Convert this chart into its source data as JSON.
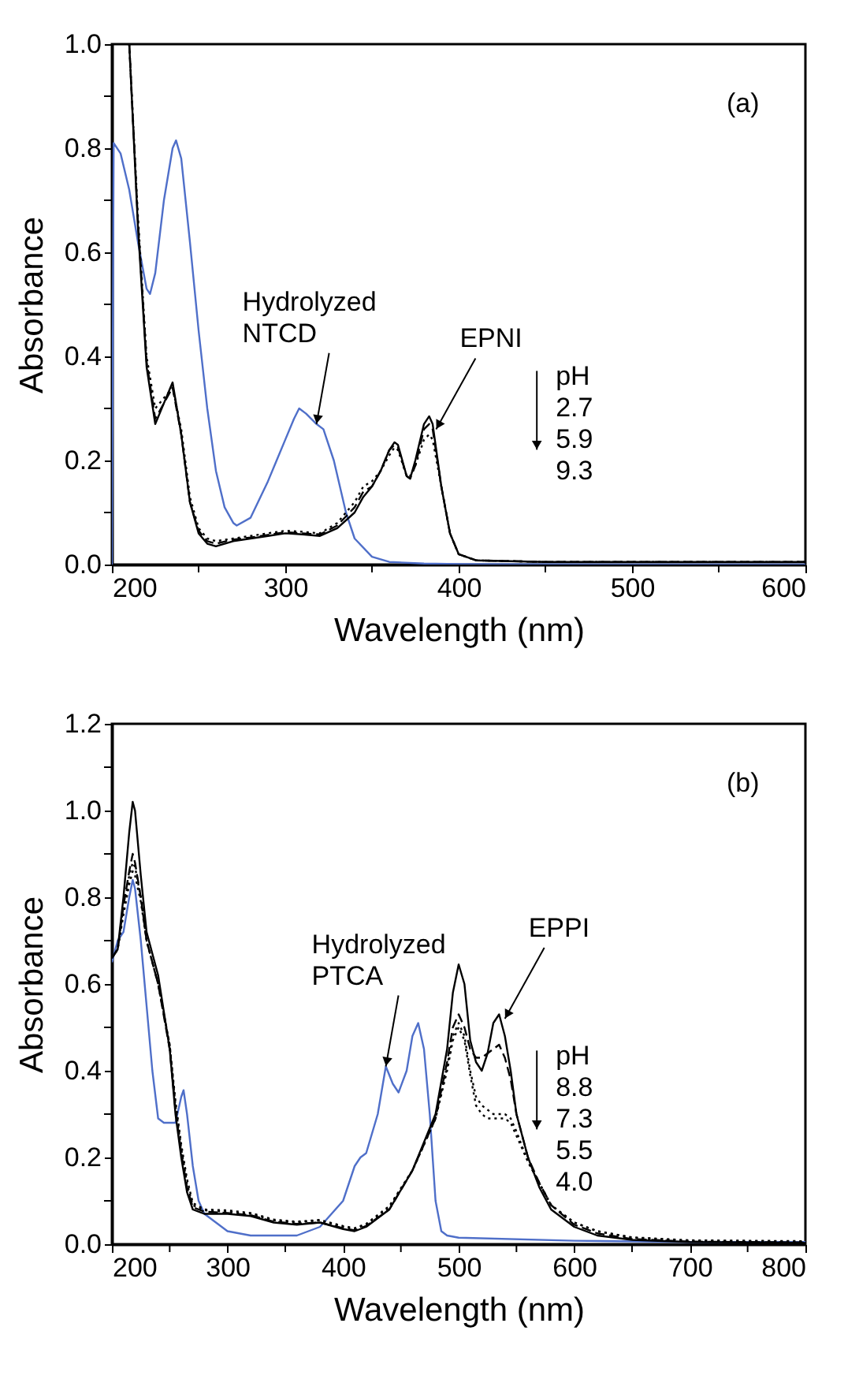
{
  "chart_data": [
    {
      "type": "line",
      "xlabel": "Wavelength (nm)",
      "ylabel": "Absorbance",
      "xlim": [
        200,
        600
      ],
      "ylim": [
        0,
        1.0
      ],
      "xticks": [
        200,
        {
          "value": 250,
          "label": null
        },
        300,
        {
          "value": 350,
          "label": null
        },
        400,
        {
          "value": 450,
          "label": null
        },
        500,
        {
          "value": 550,
          "label": null
        },
        600
      ],
      "yticks": [
        {
          "value": 0,
          "label": "0.0"
        },
        {
          "value": 0.1,
          "label": null
        },
        {
          "value": 0.2,
          "label": "0.2"
        },
        {
          "value": 0.3,
          "label": null
        },
        {
          "value": 0.4,
          "label": "0.4"
        },
        {
          "value": 0.5,
          "label": null
        },
        {
          "value": 0.6,
          "label": "0.6"
        },
        {
          "value": 0.7,
          "label": null
        },
        {
          "value": 0.8,
          "label": "0.8"
        },
        {
          "value": 0.9,
          "label": null
        },
        {
          "value": 1.0,
          "label": "1.0"
        }
      ],
      "grid": false,
      "annotations": [
        "(a)",
        "pH 2.7 5.9 9.3",
        {
          "text": "Hydrolyzed NTCD",
          "x": 318,
          "y": 0.27
        },
        {
          "text": "EPNI",
          "x": 387,
          "y": 0.26
        }
      ],
      "series": [
        {
          "color": "#4f6fc9",
          "line_style": "solid",
          "x": [
            200,
            201,
            205,
            210,
            215,
            220,
            222,
            225,
            230,
            235,
            237,
            240,
            245,
            250,
            255,
            260,
            265,
            270,
            272,
            280,
            290,
            295,
            300,
            305,
            308,
            312,
            318,
            322,
            328,
            335,
            340,
            350,
            360,
            380,
            400,
            500,
            600
          ],
          "values": [
            0.0,
            0.81,
            0.79,
            0.72,
            0.62,
            0.53,
            0.52,
            0.56,
            0.7,
            0.8,
            0.815,
            0.78,
            0.62,
            0.45,
            0.3,
            0.18,
            0.11,
            0.08,
            0.075,
            0.09,
            0.16,
            0.2,
            0.24,
            0.28,
            0.3,
            0.29,
            0.27,
            0.26,
            0.2,
            0.1,
            0.05,
            0.015,
            0.005,
            0.002,
            0.001,
            0.0,
            0.0
          ]
        },
        {
          "color": "#000000",
          "line_style": "solid",
          "x": [
            210,
            215,
            220,
            225,
            230,
            235,
            240,
            245,
            250,
            255,
            260,
            270,
            280,
            290,
            300,
            310,
            320,
            330,
            340,
            345,
            350,
            355,
            360,
            363,
            365,
            370,
            372,
            375,
            380,
            383,
            385,
            390,
            395,
            400,
            410,
            450,
            500,
            550,
            600
          ],
          "values": [
            1.0,
            0.65,
            0.38,
            0.27,
            0.31,
            0.35,
            0.25,
            0.12,
            0.06,
            0.04,
            0.035,
            0.045,
            0.05,
            0.055,
            0.06,
            0.058,
            0.055,
            0.07,
            0.1,
            0.13,
            0.15,
            0.18,
            0.22,
            0.235,
            0.23,
            0.17,
            0.165,
            0.2,
            0.27,
            0.285,
            0.27,
            0.15,
            0.06,
            0.02,
            0.008,
            0.005,
            0.005,
            0.005,
            0.005
          ]
        },
        {
          "color": "#000000",
          "line_style": "dashed",
          "x": [
            210,
            215,
            220,
            225,
            230,
            235,
            240,
            245,
            250,
            255,
            260,
            270,
            280,
            290,
            300,
            310,
            320,
            330,
            340,
            345,
            350,
            355,
            360,
            363,
            365,
            370,
            372,
            375,
            380,
            383,
            385,
            390,
            395,
            400,
            410,
            450,
            500,
            550,
            600
          ],
          "values": [
            1.0,
            0.66,
            0.39,
            0.28,
            0.31,
            0.34,
            0.25,
            0.12,
            0.065,
            0.045,
            0.04,
            0.048,
            0.052,
            0.057,
            0.062,
            0.06,
            0.058,
            0.075,
            0.11,
            0.14,
            0.15,
            0.18,
            0.22,
            0.23,
            0.225,
            0.17,
            0.165,
            0.19,
            0.26,
            0.27,
            0.26,
            0.15,
            0.06,
            0.02,
            0.008,
            0.005,
            0.005,
            0.005,
            0.005
          ]
        },
        {
          "color": "#000000",
          "line_style": "dotted",
          "x": [
            210,
            215,
            220,
            225,
            230,
            235,
            240,
            245,
            250,
            255,
            260,
            270,
            280,
            290,
            300,
            310,
            320,
            330,
            340,
            345,
            350,
            355,
            360,
            363,
            365,
            370,
            372,
            375,
            380,
            383,
            385,
            390,
            395,
            400,
            410,
            450,
            500,
            550,
            600
          ],
          "values": [
            1.0,
            0.67,
            0.4,
            0.3,
            0.32,
            0.34,
            0.26,
            0.13,
            0.07,
            0.05,
            0.045,
            0.05,
            0.055,
            0.06,
            0.065,
            0.063,
            0.06,
            0.08,
            0.12,
            0.15,
            0.16,
            0.18,
            0.21,
            0.225,
            0.22,
            0.17,
            0.17,
            0.19,
            0.24,
            0.25,
            0.24,
            0.15,
            0.06,
            0.02,
            0.008,
            0.005,
            0.005,
            0.005,
            0.005
          ]
        }
      ]
    },
    {
      "type": "line",
      "xlabel": "Wavelength (nm)",
      "ylabel": "Absorbance",
      "xlim": [
        200,
        800
      ],
      "ylim": [
        0,
        1.2
      ],
      "xticks": [
        200,
        {
          "value": 250,
          "label": null
        },
        300,
        {
          "value": 350,
          "label": null
        },
        400,
        {
          "value": 450,
          "label": null
        },
        500,
        {
          "value": 550,
          "label": null
        },
        600,
        {
          "value": 650,
          "label": null
        },
        700,
        {
          "value": 750,
          "label": null
        },
        800
      ],
      "yticks": [
        {
          "value": 0,
          "label": "0.0"
        },
        {
          "value": 0.1,
          "label": null
        },
        {
          "value": 0.2,
          "label": "0.2"
        },
        {
          "value": 0.3,
          "label": null
        },
        {
          "value": 0.4,
          "label": "0.4"
        },
        {
          "value": 0.5,
          "label": null
        },
        {
          "value": 0.6,
          "label": "0.6"
        },
        {
          "value": 0.7,
          "label": null
        },
        {
          "value": 0.8,
          "label": "0.8"
        },
        {
          "value": 0.9,
          "label": null
        },
        {
          "value": 1.0,
          "label": "1.0"
        },
        {
          "value": 1.1,
          "label": null
        },
        {
          "value": 1.2,
          "label": "1.2"
        }
      ],
      "grid": false,
      "annotations": [
        "(b)",
        "pH 8.8 7.3 5.5 4.0",
        {
          "text": "Hydrolyzed PTCA",
          "x": 437,
          "y": 0.41
        },
        {
          "text": "EPPI",
          "x": 540,
          "y": 0.52
        }
      ],
      "series": [
        {
          "color": "#4f6fc9",
          "line_style": "solid",
          "x": [
            200,
            205,
            210,
            215,
            218,
            220,
            225,
            230,
            235,
            240,
            245,
            250,
            255,
            260,
            262,
            265,
            270,
            275,
            280,
            290,
            300,
            320,
            360,
            380,
            400,
            410,
            415,
            420,
            430,
            437,
            443,
            448,
            455,
            460,
            465,
            470,
            475,
            480,
            485,
            490,
            500,
            600,
            700,
            800
          ],
          "values": [
            0.65,
            0.7,
            0.72,
            0.8,
            0.84,
            0.82,
            0.7,
            0.55,
            0.4,
            0.29,
            0.28,
            0.28,
            0.28,
            0.34,
            0.355,
            0.3,
            0.18,
            0.1,
            0.07,
            0.05,
            0.03,
            0.02,
            0.02,
            0.04,
            0.1,
            0.18,
            0.2,
            0.21,
            0.3,
            0.41,
            0.37,
            0.35,
            0.4,
            0.48,
            0.51,
            0.45,
            0.3,
            0.1,
            0.03,
            0.02,
            0.015,
            0.008,
            0.005,
            0.005
          ]
        },
        {
          "color": "#000000",
          "line_style": "solid",
          "x": [
            200,
            205,
            210,
            215,
            218,
            220,
            225,
            230,
            240,
            250,
            255,
            260,
            265,
            270,
            280,
            300,
            320,
            340,
            360,
            380,
            400,
            410,
            420,
            440,
            460,
            480,
            490,
            495,
            500,
            505,
            510,
            515,
            520,
            525,
            530,
            535,
            540,
            545,
            550,
            560,
            570,
            580,
            600,
            620,
            650,
            700,
            800
          ],
          "values": [
            0.66,
            0.68,
            0.8,
            0.95,
            1.02,
            1.0,
            0.85,
            0.72,
            0.62,
            0.45,
            0.3,
            0.2,
            0.12,
            0.08,
            0.07,
            0.07,
            0.065,
            0.05,
            0.045,
            0.05,
            0.035,
            0.03,
            0.04,
            0.08,
            0.17,
            0.3,
            0.45,
            0.58,
            0.645,
            0.6,
            0.47,
            0.42,
            0.4,
            0.44,
            0.51,
            0.53,
            0.48,
            0.4,
            0.3,
            0.2,
            0.13,
            0.08,
            0.04,
            0.02,
            0.01,
            0.005,
            0.003
          ]
        },
        {
          "color": "#000000",
          "line_style": "dashed",
          "x": [
            200,
            205,
            210,
            215,
            218,
            220,
            225,
            230,
            240,
            250,
            255,
            260,
            265,
            270,
            280,
            300,
            320,
            340,
            360,
            380,
            400,
            410,
            420,
            440,
            460,
            480,
            490,
            495,
            500,
            505,
            510,
            515,
            520,
            525,
            530,
            535,
            540,
            545,
            550,
            560,
            570,
            580,
            600,
            620,
            650,
            700,
            800
          ],
          "values": [
            0.66,
            0.68,
            0.78,
            0.86,
            0.9,
            0.88,
            0.8,
            0.7,
            0.6,
            0.45,
            0.31,
            0.21,
            0.13,
            0.085,
            0.075,
            0.072,
            0.067,
            0.052,
            0.047,
            0.05,
            0.037,
            0.032,
            0.042,
            0.08,
            0.17,
            0.29,
            0.42,
            0.5,
            0.53,
            0.5,
            0.45,
            0.43,
            0.43,
            0.44,
            0.45,
            0.46,
            0.43,
            0.38,
            0.3,
            0.2,
            0.14,
            0.09,
            0.045,
            0.025,
            0.012,
            0.006,
            0.004
          ]
        },
        {
          "color": "#000000",
          "line_style": "dotted",
          "x": [
            200,
            205,
            210,
            215,
            218,
            220,
            225,
            230,
            240,
            250,
            255,
            260,
            265,
            270,
            280,
            300,
            320,
            340,
            360,
            380,
            400,
            410,
            420,
            440,
            460,
            480,
            490,
            495,
            500,
            505,
            510,
            515,
            520,
            525,
            530,
            535,
            540,
            545,
            550,
            560,
            570,
            580,
            600,
            620,
            650,
            700,
            800
          ],
          "values": [
            0.66,
            0.68,
            0.77,
            0.85,
            0.88,
            0.87,
            0.8,
            0.7,
            0.6,
            0.46,
            0.32,
            0.22,
            0.14,
            0.09,
            0.078,
            0.075,
            0.07,
            0.055,
            0.05,
            0.055,
            0.04,
            0.035,
            0.045,
            0.085,
            0.17,
            0.29,
            0.41,
            0.48,
            0.51,
            0.48,
            0.4,
            0.34,
            0.32,
            0.31,
            0.3,
            0.3,
            0.3,
            0.29,
            0.26,
            0.19,
            0.14,
            0.09,
            0.05,
            0.03,
            0.015,
            0.008,
            0.006
          ]
        },
        {
          "color": "#000000",
          "line_style": "dotted",
          "x": [
            200,
            205,
            210,
            215,
            218,
            220,
            225,
            230,
            240,
            250,
            255,
            260,
            265,
            270,
            280,
            300,
            320,
            340,
            360,
            380,
            400,
            410,
            420,
            440,
            460,
            480,
            490,
            495,
            500,
            505,
            510,
            515,
            520,
            525,
            530,
            535,
            540,
            545,
            550,
            560,
            570,
            580,
            600,
            620,
            650,
            700,
            800
          ],
          "values": [
            0.66,
            0.68,
            0.76,
            0.83,
            0.86,
            0.85,
            0.79,
            0.7,
            0.6,
            0.46,
            0.33,
            0.23,
            0.15,
            0.095,
            0.08,
            0.078,
            0.072,
            0.057,
            0.052,
            0.056,
            0.042,
            0.037,
            0.047,
            0.088,
            0.17,
            0.29,
            0.4,
            0.47,
            0.5,
            0.47,
            0.39,
            0.32,
            0.3,
            0.29,
            0.29,
            0.29,
            0.29,
            0.28,
            0.25,
            0.19,
            0.14,
            0.09,
            0.05,
            0.03,
            0.016,
            0.009,
            0.007
          ]
        }
      ]
    }
  ]
}
